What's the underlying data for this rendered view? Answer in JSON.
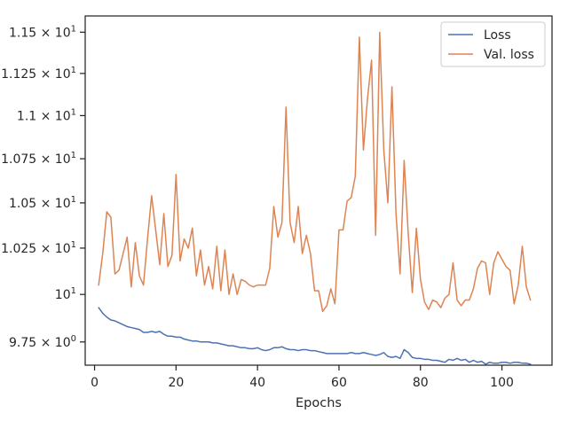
{
  "chart_data": {
    "type": "line",
    "title": "",
    "xlabel": "Epochs",
    "ylabel": "",
    "xlim": [
      -2.3,
      112.3
    ],
    "ylim": [
      9.63,
      11.6
    ],
    "y_scale": "log",
    "grid": false,
    "legend_placement": "top-right",
    "x_ticks": [
      {
        "value": 0,
        "label": "0"
      },
      {
        "value": 20,
        "label": "20"
      },
      {
        "value": 40,
        "label": "40"
      },
      {
        "value": 60,
        "label": "60"
      },
      {
        "value": 80,
        "label": "80"
      },
      {
        "value": 100,
        "label": "100"
      }
    ],
    "y_ticks": [
      {
        "value": 9.75,
        "mantissa": "9.75",
        "base": "10",
        "exp": "0"
      },
      {
        "value": 10.0,
        "mantissa": "",
        "base": "10",
        "exp": "1"
      },
      {
        "value": 10.25,
        "mantissa": "1.025",
        "base": "10",
        "exp": "1"
      },
      {
        "value": 10.5,
        "mantissa": "1.05",
        "base": "10",
        "exp": "1"
      },
      {
        "value": 10.75,
        "mantissa": "1.075",
        "base": "10",
        "exp": "1"
      },
      {
        "value": 11.0,
        "mantissa": "1.1",
        "base": "10",
        "exp": "1"
      },
      {
        "value": 11.25,
        "mantissa": "1.125",
        "base": "10",
        "exp": "1"
      },
      {
        "value": 11.5,
        "mantissa": "1.15",
        "base": "10",
        "exp": "1"
      }
    ],
    "x": [
      1,
      2,
      3,
      4,
      5,
      6,
      7,
      8,
      9,
      10,
      11,
      12,
      13,
      14,
      15,
      16,
      17,
      18,
      19,
      20,
      21,
      22,
      23,
      24,
      25,
      26,
      27,
      28,
      29,
      30,
      31,
      32,
      33,
      34,
      35,
      36,
      37,
      38,
      39,
      40,
      41,
      42,
      43,
      44,
      45,
      46,
      47,
      48,
      49,
      50,
      51,
      52,
      53,
      54,
      55,
      56,
      57,
      58,
      59,
      60,
      61,
      62,
      63,
      64,
      65,
      66,
      67,
      68,
      69,
      70,
      71,
      72,
      73,
      74,
      75,
      76,
      77,
      78,
      79,
      80,
      81,
      82,
      83,
      84,
      85,
      86,
      87,
      88,
      89,
      90,
      91,
      92,
      93,
      94,
      95,
      96,
      97,
      98,
      99,
      100,
      101,
      102,
      103,
      104,
      105,
      106,
      107
    ],
    "series": [
      {
        "name": "Loss",
        "color": "#4c72b0",
        "values": [
          9.93,
          9.9,
          9.88,
          9.865,
          9.86,
          9.85,
          9.84,
          9.83,
          9.825,
          9.82,
          9.815,
          9.8,
          9.8,
          9.805,
          9.8,
          9.805,
          9.79,
          9.78,
          9.78,
          9.775,
          9.775,
          9.765,
          9.76,
          9.755,
          9.755,
          9.75,
          9.75,
          9.75,
          9.745,
          9.745,
          9.74,
          9.735,
          9.73,
          9.73,
          9.725,
          9.72,
          9.72,
          9.715,
          9.715,
          9.72,
          9.71,
          9.705,
          9.71,
          9.72,
          9.72,
          9.725,
          9.715,
          9.71,
          9.71,
          9.705,
          9.71,
          9.71,
          9.705,
          9.705,
          9.7,
          9.695,
          9.69,
          9.69,
          9.69,
          9.69,
          9.69,
          9.69,
          9.695,
          9.69,
          9.69,
          9.695,
          9.69,
          9.685,
          9.68,
          9.685,
          9.695,
          9.675,
          9.67,
          9.675,
          9.665,
          9.71,
          9.695,
          9.67,
          9.665,
          9.665,
          9.66,
          9.66,
          9.655,
          9.655,
          9.65,
          9.645,
          9.66,
          9.655,
          9.665,
          9.655,
          9.66,
          9.645,
          9.655,
          9.645,
          9.65,
          9.635,
          9.645,
          9.64,
          9.64,
          9.645,
          9.645,
          9.64,
          9.645,
          9.645,
          9.64,
          9.64,
          9.635
        ]
      },
      {
        "name": "Val. loss",
        "color": "#dd8452",
        "values": [
          10.05,
          10.22,
          10.45,
          10.42,
          10.11,
          10.13,
          10.22,
          10.31,
          10.04,
          10.28,
          10.1,
          10.05,
          10.3,
          10.54,
          10.35,
          10.16,
          10.44,
          10.15,
          10.21,
          10.66,
          10.18,
          10.3,
          10.25,
          10.36,
          10.1,
          10.24,
          10.05,
          10.15,
          10.03,
          10.26,
          10.02,
          10.24,
          10.0,
          10.11,
          10.0,
          10.08,
          10.07,
          10.05,
          10.04,
          10.05,
          10.05,
          10.05,
          10.14,
          10.48,
          10.31,
          10.39,
          11.05,
          10.39,
          10.28,
          10.48,
          10.22,
          10.32,
          10.22,
          10.02,
          10.02,
          9.91,
          9.94,
          10.03,
          9.95,
          10.35,
          10.35,
          10.51,
          10.53,
          10.65,
          11.47,
          10.8,
          11.1,
          11.33,
          10.32,
          11.5,
          10.8,
          10.5,
          11.17,
          10.44,
          10.11,
          10.74,
          10.33,
          10.01,
          10.36,
          10.08,
          9.96,
          9.92,
          9.97,
          9.96,
          9.93,
          9.98,
          10.0,
          10.17,
          9.97,
          9.94,
          9.97,
          9.97,
          10.03,
          10.14,
          10.18,
          10.17,
          10.0,
          10.17,
          10.23,
          10.19,
          10.15,
          10.13,
          9.95,
          10.05,
          10.26,
          10.04,
          9.97
        ]
      }
    ]
  }
}
